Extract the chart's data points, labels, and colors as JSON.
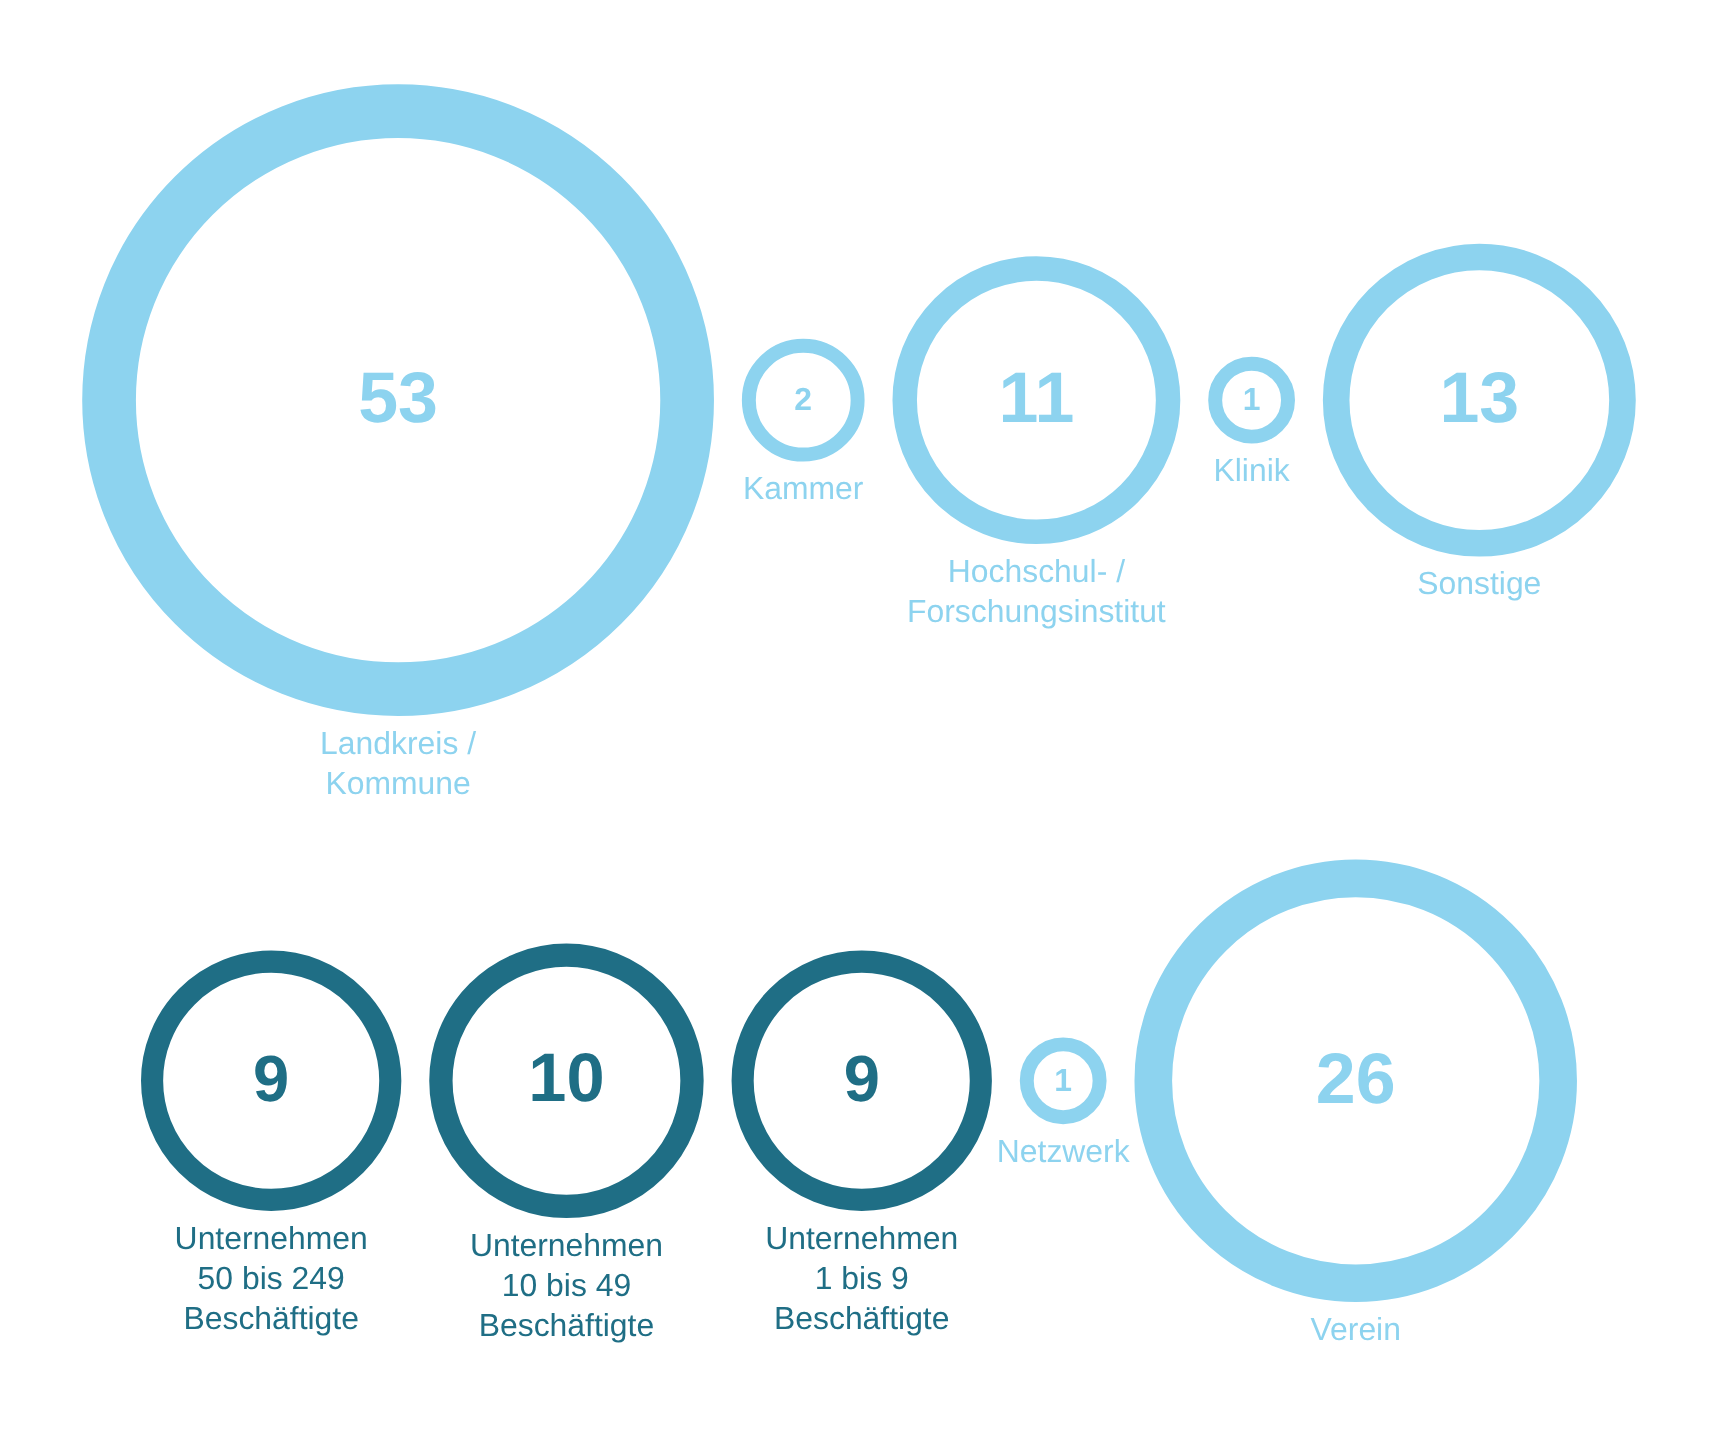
{
  "chart_data": {
    "type": "other",
    "data_labels": true,
    "categories": [
      "Landkreis /\nKommune",
      "Kammer",
      "Hochschul- /\nForschungsinstitut",
      "Klinik",
      "Sonstige",
      "Unternehmen\n50 bis 249\nBeschäftigte",
      "Unternehmen\n10 bis 49\nBeschäftigte",
      "Unternehmen\n1 bis 9\nBeschäftigte",
      "Netzwerk",
      "Verein"
    ],
    "values": [
      53,
      2,
      11,
      1,
      13,
      9,
      10,
      9,
      1,
      26
    ],
    "colors": [
      "#8dd3ef",
      "#8dd3ef",
      "#8dd3ef",
      "#8dd3ef",
      "#8dd3ef",
      "#1f6e85",
      "#1f6e85",
      "#1f6e85",
      "#8dd3ef",
      "#8dd3ef"
    ]
  }
}
